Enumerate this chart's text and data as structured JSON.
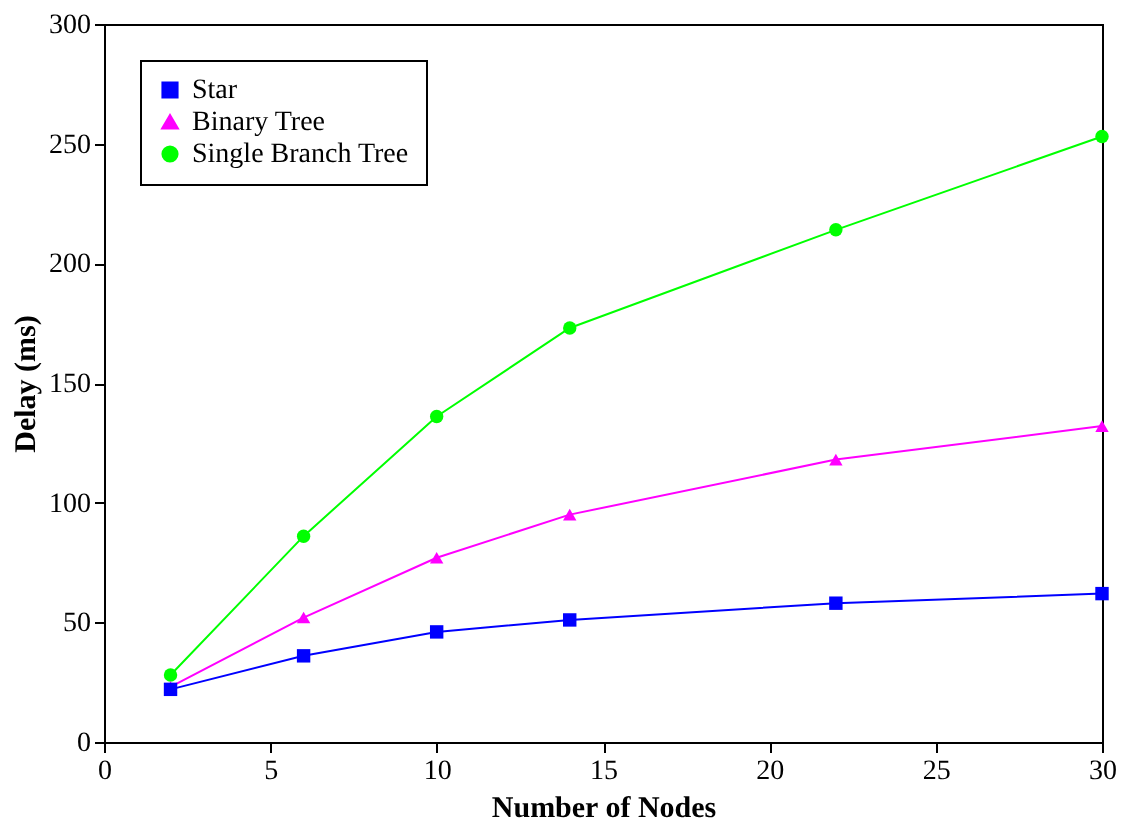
{
  "chart_data": {
    "type": "line",
    "xlabel": "Number of Nodes",
    "ylabel": "Delay (ms)",
    "x": [
      2,
      6,
      10,
      14,
      22,
      30
    ],
    "series": [
      {
        "name": "Star",
        "color": "#0000ff",
        "marker": "square",
        "values": [
          22,
          36,
          46,
          51,
          58,
          62
        ]
      },
      {
        "name": "Binary Tree",
        "color": "#ff00ff",
        "marker": "triangle",
        "values": [
          23,
          52,
          77,
          95,
          118,
          132
        ]
      },
      {
        "name": "Single Branch Tree",
        "color": "#00ff00",
        "marker": "circle",
        "values": [
          28,
          86,
          136,
          173,
          214,
          253
        ]
      }
    ],
    "xlim": [
      0,
      30
    ],
    "xticks": [
      0,
      5,
      10,
      15,
      20,
      25,
      30
    ],
    "ylim": [
      0,
      300
    ],
    "yticks": [
      0,
      50,
      100,
      150,
      200,
      250,
      300
    ],
    "grid": false,
    "legend": "top left",
    "line_style": "solid"
  }
}
